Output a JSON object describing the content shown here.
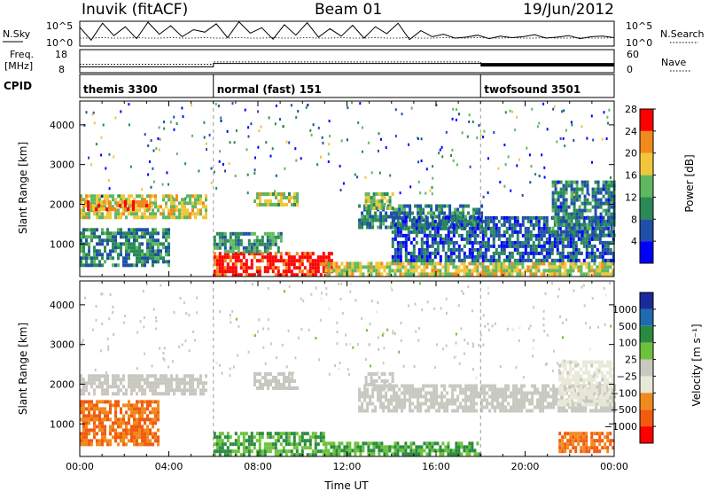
{
  "header": {
    "station": "Inuvik (fitACF)",
    "beam": "Beam 01",
    "date": "19/Jun/2012"
  },
  "colors": {
    "power_scale": [
      "#0000ff",
      "#1f4fa8",
      "#2a8a56",
      "#5fb860",
      "#f0c63a",
      "#f08a1c",
      "#ff0000"
    ],
    "velocity_scale": [
      "#1a2a9c",
      "#1f6bb0",
      "#2a8a40",
      "#6cc23a",
      "#c8c8c0",
      "#e8e8d8",
      "#f08a1c",
      "#f25a10",
      "#ff0000"
    ]
  },
  "chart_data": [
    {
      "panel": "noise",
      "type": "line",
      "left_label": "N.Sky",
      "right_label": "N.Search",
      "left_ticks": [
        "10^5",
        "10^0"
      ],
      "right_ticks": [
        "10^5",
        "10^0"
      ],
      "ylog": true,
      "xlim": [
        "00:00",
        "00:00"
      ],
      "series": [
        {
          "legend": "solid",
          "values_log10": [
            3.8,
            1.2,
            4.6,
            2.1,
            3.9,
            1.5,
            4.8,
            2.4,
            4.1,
            1.9,
            3.3,
            2.8,
            4.5,
            1.7,
            4.9,
            2.6,
            3.7,
            1.4,
            4.3,
            2.2,
            4.7,
            1.8,
            3.5,
            2.0,
            4.2,
            1.6,
            3.9,
            2.5,
            4.6,
            1.3,
            3.1,
            1.9,
            2.4,
            1.6,
            1.8,
            2.2,
            1.5,
            2.0,
            1.7,
            1.9,
            2.3,
            1.6,
            1.8,
            2.1,
            1.5,
            1.9,
            2.0,
            1.7
          ]
        },
        {
          "legend": "dotted",
          "values_log10": [
            1.6,
            1.6,
            1.7,
            1.6,
            1.6,
            1.7,
            1.6,
            1.6,
            1.7,
            1.6,
            1.6,
            1.7,
            1.6,
            1.6,
            1.7,
            1.6,
            1.6,
            1.7,
            1.6,
            1.6,
            1.7,
            1.6,
            1.6,
            1.7,
            1.6,
            1.6,
            1.7,
            1.6,
            1.6,
            1.7,
            1.6,
            1.6,
            1.7,
            1.6,
            1.6,
            1.7,
            1.6,
            1.6,
            1.7,
            1.6,
            1.6,
            1.7,
            1.6,
            1.6,
            1.7,
            1.6,
            1.6,
            1.7
          ]
        }
      ]
    },
    {
      "panel": "frequency",
      "type": "line",
      "left_label_top": "Freq.",
      "left_label_bottom": "[MHz]",
      "right_label": "Nave",
      "left_ticks": [
        "18",
        "8"
      ],
      "right_ticks": [
        "60",
        "0"
      ],
      "ylim_left": [
        8,
        18
      ],
      "ylim_right": [
        0,
        60
      ],
      "series": [
        {
          "name": "Freq",
          "x_hours": [
            0,
            6,
            6,
            24
          ],
          "values": [
            10.5,
            10.5,
            12.0,
            12.0
          ]
        },
        {
          "name": "Nave",
          "x_hours": [
            0,
            6,
            6,
            18,
            18,
            24
          ],
          "values": [
            22,
            22,
            28,
            28,
            20,
            20
          ]
        }
      ]
    },
    {
      "panel": "cpid",
      "type": "table",
      "label": "CPID",
      "modes": [
        {
          "name": "themis 3300",
          "start_hour": 0
        },
        {
          "name": "normal (fast) 151",
          "start_hour": 6
        },
        {
          "name": "twofsound 3501",
          "start_hour": 18
        }
      ]
    },
    {
      "panel": "power",
      "type": "heatmap",
      "ylabel": "Slant Range [km]",
      "yticks": [
        1000,
        2000,
        3000,
        4000
      ],
      "ylim": [
        180,
        4600
      ],
      "xlim_hours": [
        0,
        24
      ],
      "colorbar_label": "Power [dB]",
      "colorbar_ticks": [
        4,
        8,
        12,
        16,
        20,
        24,
        28
      ],
      "colorbar_range": [
        0,
        30
      ],
      "regions": [
        {
          "t0": 0.0,
          "t1": 5.7,
          "r0": 1650,
          "r1": 2250,
          "value": 18
        },
        {
          "t0": 0.0,
          "t1": 4.0,
          "r0": 500,
          "r1": 1400,
          "value": 10
        },
        {
          "t0": 0.2,
          "t1": 3.3,
          "r0": 1900,
          "r1": 2100,
          "value": 24
        },
        {
          "t0": 6.0,
          "t1": 11.3,
          "r0": 180,
          "r1": 800,
          "value": 28
        },
        {
          "t0": 6.0,
          "t1": 9.0,
          "r0": 800,
          "r1": 1300,
          "value": 12
        },
        {
          "t0": 11.0,
          "t1": 24.0,
          "r0": 250,
          "r1": 550,
          "value": 18
        },
        {
          "t0": 12.5,
          "t1": 18.0,
          "r0": 1400,
          "r1": 2000,
          "value": 10
        },
        {
          "t0": 7.8,
          "t1": 9.8,
          "r0": 2000,
          "r1": 2300,
          "value": 17
        },
        {
          "t0": 12.8,
          "t1": 14.0,
          "r0": 1900,
          "r1": 2300,
          "value": 16
        },
        {
          "t0": 14.0,
          "t1": 24.0,
          "r0": 600,
          "r1": 1700,
          "value": 7
        },
        {
          "t0": 21.2,
          "t1": 24.0,
          "r0": 1200,
          "r1": 2600,
          "value": 9
        }
      ]
    },
    {
      "panel": "velocity",
      "type": "heatmap",
      "ylabel": "Slant Range [km]",
      "yticks": [
        1000,
        2000,
        3000,
        4000
      ],
      "ylim": [
        180,
        4600
      ],
      "xlim_hours": [
        0,
        24
      ],
      "xticks": [
        "00:00",
        "04:00",
        "08:00",
        "12:00",
        "16:00",
        "20:00",
        "00:00"
      ],
      "xlabel": "Time UT",
      "colorbar_label": "Velocity [m s⁻¹]",
      "colorbar_ticks": [
        "1000",
        "500",
        "100",
        "25",
        "−25",
        "−100",
        "−500",
        "−1000"
      ],
      "regions": [
        {
          "t0": 0.0,
          "t1": 5.7,
          "r0": 1750,
          "r1": 2250,
          "value": 5
        },
        {
          "t0": 0.0,
          "t1": 3.5,
          "r0": 500,
          "r1": 1600,
          "value": -300
        },
        {
          "t0": 6.0,
          "t1": 11.0,
          "r0": 180,
          "r1": 800,
          "value": 60
        },
        {
          "t0": 11.0,
          "t1": 18.0,
          "r0": 250,
          "r1": 550,
          "value": 60
        },
        {
          "t0": 12.5,
          "t1": 24.0,
          "r0": 1300,
          "r1": 2000,
          "value": 5
        },
        {
          "t0": 21.5,
          "t1": 24.0,
          "r0": 350,
          "r1": 800,
          "value": -300
        },
        {
          "t0": 21.5,
          "t1": 24.0,
          "r0": 1500,
          "r1": 2600,
          "value": -40
        },
        {
          "t0": 7.8,
          "t1": 9.8,
          "r0": 1900,
          "r1": 2300,
          "value": 5
        },
        {
          "t0": 12.8,
          "t1": 14.0,
          "r0": 1900,
          "r1": 2300,
          "value": 5
        }
      ]
    }
  ]
}
